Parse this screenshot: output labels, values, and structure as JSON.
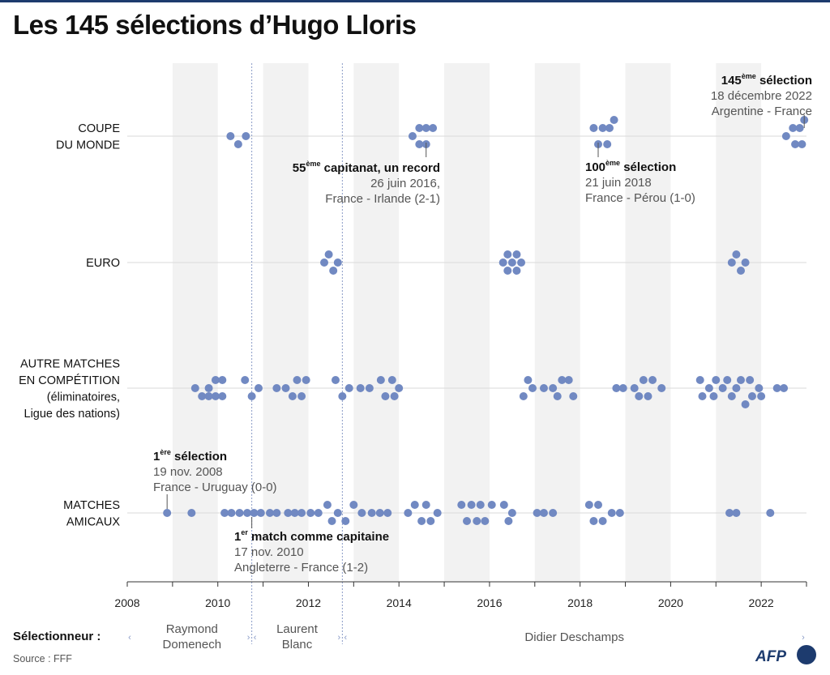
{
  "title": "Les 145 sélections d’Hugo Lloris",
  "chart_data": {
    "type": "scatter",
    "xlim": [
      2008,
      2023
    ],
    "x_ticks": [
      "2008",
      "2010",
      "2012",
      "2014",
      "2016",
      "2018",
      "2020",
      "2022"
    ],
    "categories": [
      {
        "key": "cdm",
        "lines": [
          "COUPE",
          "DU MONDE"
        ]
      },
      {
        "key": "euro",
        "lines": [
          "EURO"
        ]
      },
      {
        "key": "comp",
        "lines": [
          "AUTRE MATCHES",
          "EN COMPÉTITION",
          "(éliminatoires,",
          "Ligue des nations)"
        ]
      },
      {
        "key": "amicaux",
        "lines": [
          "MATCHES",
          "AMICAUX"
        ]
      }
    ],
    "series": [
      {
        "category": "cdm",
        "points": [
          [
            2010.28,
            0
          ],
          [
            2010.45,
            -1
          ],
          [
            2010.62,
            0
          ],
          [
            2014.3,
            0
          ],
          [
            2014.45,
            1
          ],
          [
            2014.6,
            1
          ],
          [
            2014.45,
            -1
          ],
          [
            2014.6,
            -1
          ],
          [
            2014.75,
            1
          ],
          [
            2018.3,
            1
          ],
          [
            2018.4,
            -1
          ],
          [
            2018.5,
            1
          ],
          [
            2018.6,
            -1
          ],
          [
            2018.65,
            1
          ],
          [
            2018.75,
            2
          ]
        ]
      },
      {
        "category": "euro",
        "points": [
          [
            2012.35,
            0
          ],
          [
            2012.45,
            1
          ],
          [
            2012.55,
            -1
          ],
          [
            2012.65,
            0
          ],
          [
            2016.3,
            0
          ],
          [
            2016.4,
            1
          ],
          [
            2016.4,
            -1
          ],
          [
            2016.5,
            0
          ],
          [
            2016.6,
            1
          ],
          [
            2016.6,
            -1
          ],
          [
            2016.7,
            0
          ],
          [
            2021.35,
            0
          ],
          [
            2021.45,
            1
          ],
          [
            2021.55,
            -1
          ],
          [
            2021.65,
            0
          ]
        ]
      },
      {
        "category": "comp",
        "points": [
          [
            2009.5,
            0
          ],
          [
            2009.65,
            -1
          ],
          [
            2009.8,
            0
          ],
          [
            2009.8,
            -1
          ],
          [
            2009.95,
            1
          ],
          [
            2009.95,
            -1
          ],
          [
            2010.1,
            1
          ],
          [
            2010.1,
            -1
          ],
          [
            2010.6,
            1
          ],
          [
            2010.75,
            -1
          ],
          [
            2010.9,
            0
          ],
          [
            2011.3,
            0
          ],
          [
            2011.5,
            0
          ],
          [
            2011.65,
            -1
          ],
          [
            2011.75,
            1
          ],
          [
            2011.85,
            -1
          ],
          [
            2011.95,
            1
          ],
          [
            2012.6,
            1
          ],
          [
            2012.75,
            -1
          ],
          [
            2012.9,
            0
          ],
          [
            2013.15,
            0
          ],
          [
            2013.35,
            0
          ],
          [
            2013.6,
            1
          ],
          [
            2013.7,
            -1
          ],
          [
            2013.85,
            1
          ],
          [
            2013.9,
            -1
          ],
          [
            2014.0,
            0
          ],
          [
            2016.75,
            -1
          ],
          [
            2016.85,
            1
          ],
          [
            2016.95,
            0
          ],
          [
            2017.2,
            0
          ],
          [
            2017.4,
            0
          ],
          [
            2017.5,
            -1
          ],
          [
            2017.6,
            1
          ],
          [
            2017.75,
            1
          ],
          [
            2017.85,
            -1
          ],
          [
            2018.8,
            0
          ],
          [
            2018.95,
            0
          ],
          [
            2019.2,
            0
          ],
          [
            2019.3,
            -1
          ],
          [
            2019.4,
            1
          ],
          [
            2019.5,
            -1
          ],
          [
            2019.6,
            1
          ],
          [
            2019.8,
            0
          ],
          [
            2020.65,
            1
          ],
          [
            2020.7,
            -1
          ],
          [
            2020.85,
            0
          ],
          [
            2020.95,
            -1
          ],
          [
            2021.0,
            1
          ],
          [
            2021.15,
            0
          ],
          [
            2021.25,
            1
          ],
          [
            2021.35,
            -1
          ],
          [
            2021.45,
            0
          ],
          [
            2021.55,
            1
          ],
          [
            2021.65,
            -2
          ],
          [
            2021.75,
            1
          ],
          [
            2021.8,
            -1
          ],
          [
            2021.95,
            0
          ],
          [
            2022.0,
            -1
          ],
          [
            2022.35,
            0
          ],
          [
            2022.5,
            0
          ]
        ]
      },
      {
        "category": "amicaux",
        "points": [
          [
            2008.88,
            0
          ],
          [
            2009.42,
            0
          ],
          [
            2010.15,
            0
          ],
          [
            2010.3,
            0
          ],
          [
            2010.48,
            0
          ],
          [
            2010.65,
            0
          ],
          [
            2010.8,
            0
          ],
          [
            2010.95,
            0
          ],
          [
            2011.15,
            0
          ],
          [
            2011.3,
            0
          ],
          [
            2011.55,
            0
          ],
          [
            2011.7,
            0
          ],
          [
            2011.85,
            0
          ],
          [
            2012.05,
            0
          ],
          [
            2012.22,
            0
          ],
          [
            2012.42,
            1
          ],
          [
            2012.52,
            -1
          ],
          [
            2012.65,
            0
          ],
          [
            2012.82,
            -1
          ],
          [
            2013.0,
            1
          ],
          [
            2013.18,
            0
          ],
          [
            2013.4,
            0
          ],
          [
            2013.58,
            0
          ],
          [
            2013.75,
            0
          ],
          [
            2014.2,
            0
          ],
          [
            2014.35,
            1
          ],
          [
            2014.5,
            -1
          ],
          [
            2014.6,
            1
          ],
          [
            2014.7,
            -1
          ],
          [
            2014.85,
            0
          ],
          [
            2015.38,
            1
          ],
          [
            2015.5,
            -1
          ],
          [
            2015.6,
            1
          ],
          [
            2015.72,
            -1
          ],
          [
            2015.8,
            1
          ],
          [
            2015.9,
            -1
          ],
          [
            2016.05,
            1
          ],
          [
            2016.32,
            1
          ],
          [
            2016.42,
            -1
          ],
          [
            2016.5,
            0
          ],
          [
            2017.05,
            0
          ],
          [
            2017.2,
            0
          ],
          [
            2017.4,
            0
          ],
          [
            2018.2,
            1
          ],
          [
            2018.3,
            -1
          ],
          [
            2018.4,
            1
          ],
          [
            2018.5,
            -1
          ],
          [
            2018.7,
            0
          ],
          [
            2018.88,
            0
          ],
          [
            2021.3,
            0
          ],
          [
            2021.45,
            0
          ],
          [
            2022.2,
            0
          ]
        ]
      }
    ],
    "highlight_145": [
      [
        2022.55,
        0
      ],
      [
        2022.7,
        1
      ],
      [
        2022.75,
        -1
      ],
      [
        2022.85,
        1
      ],
      [
        2022.9,
        -1
      ],
      [
        2022.95,
        2
      ]
    ],
    "annotations": [
      {
        "key": "first",
        "bold": "1",
        "sup": "ère",
        "bold2": " sélection",
        "line2": "19 nov. 2008",
        "line3": "France - Uruguay (0-0)"
      },
      {
        "key": "captain1",
        "bold": "1",
        "sup": "er",
        "bold2": " match comme capitaine",
        "line2": "17 nov. 2010",
        "line3": "Angleterre - France (1-2)"
      },
      {
        "key": "cap55",
        "bold": "55",
        "sup": "ème",
        "bold2": " capitanat, un record",
        "line2": "26 juin 2016,",
        "line3": "France - Irlande (2-1)"
      },
      {
        "key": "sel100",
        "bold": "100",
        "sup": "ème",
        "bold2": " sélection",
        "line2": "21 juin 2018",
        "line3": "France - Pérou (1-0)"
      },
      {
        "key": "sel145",
        "bold": "145",
        "sup": "ème",
        "bold2": " sélection",
        "line2": "18 décembre 2022",
        "line3": "Argentine - France"
      }
    ],
    "coaches_label": "Sélectionneur :",
    "coaches": [
      {
        "lines": [
          "Raymond",
          "Domenech"
        ]
      },
      {
        "lines": [
          "Laurent",
          "Blanc"
        ]
      },
      {
        "lines": [
          "Didier Deschamps"
        ]
      }
    ],
    "coach_changes": [
      2010.75,
      2012.75
    ],
    "grid": true,
    "colors": {
      "dot": "#7189c2",
      "band": "#f2f2f2",
      "guide": "#8a9bc7",
      "topbar": "#1d3b6e"
    }
  },
  "source": "Source : FFF",
  "logo": "AFP"
}
